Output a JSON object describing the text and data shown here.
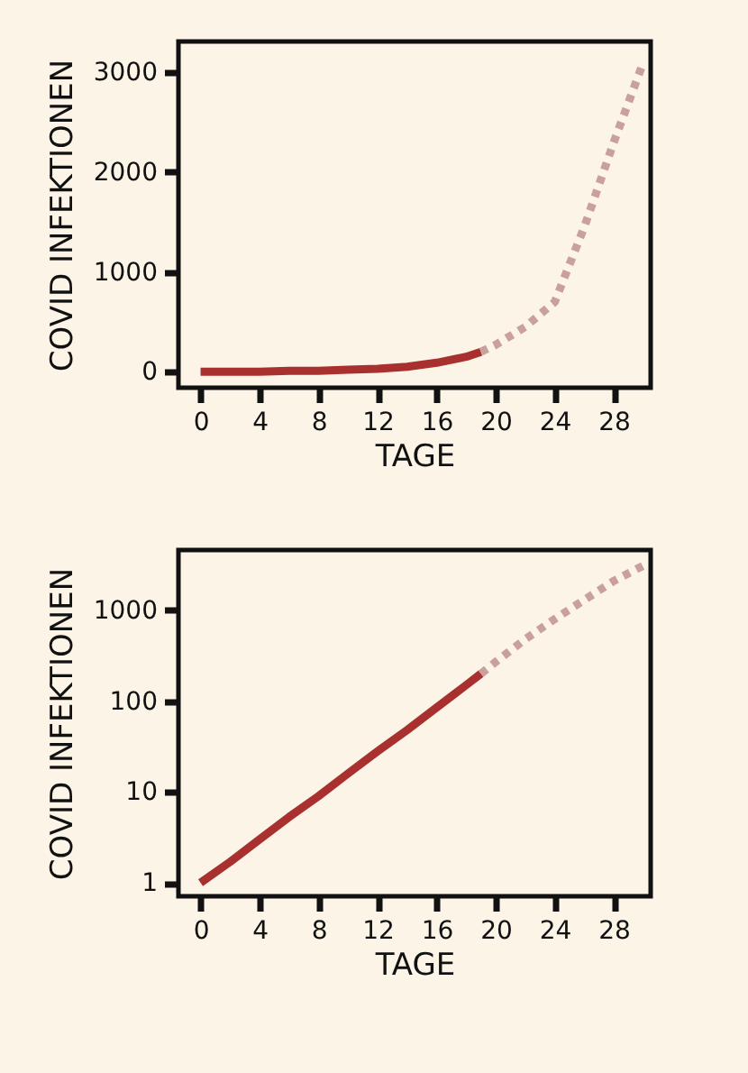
{
  "chart_data": [
    {
      "type": "line",
      "xlabel": "TAGE",
      "ylabel": "COVID INFEKTIONEN",
      "xlim": [
        -1.5,
        30.5
      ],
      "xticks": [
        0,
        4,
        8,
        12,
        16,
        20,
        24,
        28
      ],
      "ylim": [
        -160,
        3310
      ],
      "yticks": [
        0,
        1000,
        2000,
        3000
      ],
      "series": [
        {
          "color": "#a8302e",
          "line_style": "solid",
          "x": [
            0,
            2,
            4,
            6,
            8,
            10,
            12,
            14,
            16,
            18,
            19
          ],
          "values": [
            0,
            0,
            0,
            10,
            10,
            20,
            30,
            50,
            90,
            150,
            200
          ]
        },
        {
          "color": "#c9a09c",
          "line_style": "dotted",
          "x": [
            19,
            20,
            22,
            24,
            26,
            28,
            30
          ],
          "values": [
            200,
            270,
            450,
            700,
            1450,
            2300,
            3100
          ]
        }
      ]
    },
    {
      "type": "line",
      "xlabel": "TAGE",
      "ylabel": "COVID INFEKTIONEN",
      "xlim": [
        -1.5,
        30.5
      ],
      "xticks": [
        0,
        4,
        8,
        12,
        16,
        20,
        24,
        28
      ],
      "ylim": [
        0.71,
        4600
      ],
      "yticks": [
        1,
        10,
        100,
        1000
      ],
      "log": true,
      "series": [
        {
          "color": "#a8302e",
          "line_style": "solid",
          "x": [
            0,
            2,
            4,
            6,
            8,
            10,
            12,
            14,
            16,
            18,
            19
          ],
          "values": [
            1,
            1.7,
            3,
            5.3,
            9,
            16,
            28,
            48,
            85,
            150,
            200
          ]
        },
        {
          "color": "#c9a09c",
          "line_style": "dotted",
          "x": [
            19,
            20,
            22,
            24,
            26,
            28,
            30
          ],
          "values": [
            200,
            270,
            480,
            800,
            1300,
            2100,
            3100
          ]
        }
      ]
    }
  ]
}
